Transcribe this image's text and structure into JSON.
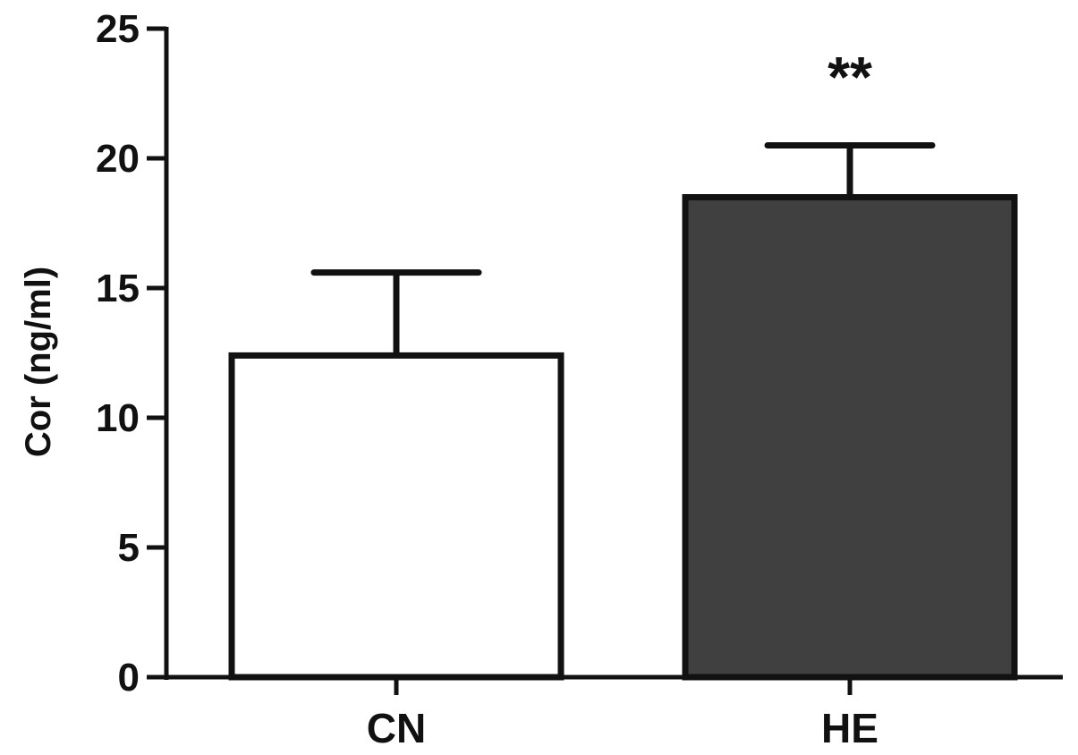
{
  "chart_data": {
    "type": "bar",
    "categories": [
      "CN",
      "HE"
    ],
    "values": [
      12.4,
      18.5
    ],
    "error_upper": [
      15.6,
      20.5
    ],
    "bar_colors": [
      "#ffffff",
      "#404040"
    ],
    "edge_color": "#111111",
    "annotations": [
      "",
      "**"
    ],
    "title": "",
    "xlabel": "",
    "ylabel": "Cor (ng/ml)",
    "ylim": [
      0,
      25
    ],
    "yticks": [
      0,
      5,
      10,
      15,
      20,
      25
    ],
    "grid": false,
    "legend": "none"
  }
}
